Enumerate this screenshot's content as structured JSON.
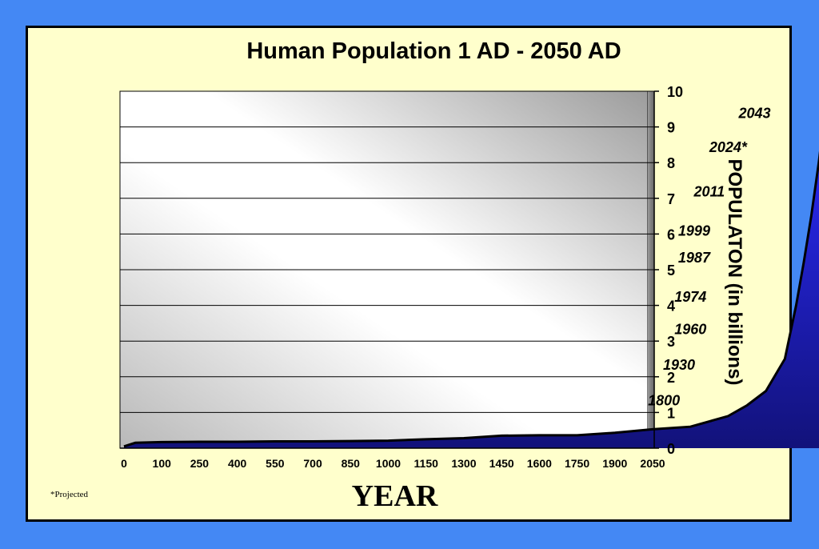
{
  "chart_data": {
    "type": "area",
    "title": "Human Population 1 AD - 2050 AD",
    "xlabel": "YEAR",
    "ylabel": "POPULATON (in billions)",
    "footnote": "*Projected",
    "x_tick_labels": [
      "0",
      "100",
      "250",
      "400",
      "550",
      "700",
      "850",
      "1000",
      "1150",
      "1300",
      "1450",
      "1600",
      "1750",
      "1900",
      "2050"
    ],
    "y_ticks": [
      0,
      1,
      2,
      3,
      4,
      5,
      6,
      7,
      8,
      9,
      10
    ],
    "ylim": [
      0,
      10
    ],
    "grid": true,
    "series": [
      {
        "points": [
          [
            0,
            0.05
          ],
          [
            0.3,
            0.15
          ],
          [
            1,
            0.17
          ],
          [
            2,
            0.18
          ],
          [
            3,
            0.18
          ],
          [
            4,
            0.19
          ],
          [
            5,
            0.19
          ],
          [
            6,
            0.2
          ],
          [
            7,
            0.21
          ],
          [
            8,
            0.25
          ],
          [
            9,
            0.28
          ],
          [
            10,
            0.35
          ],
          [
            11,
            0.36
          ],
          [
            12,
            0.36
          ],
          [
            13,
            0.43
          ],
          [
            14,
            0.53
          ],
          [
            15,
            0.6
          ],
          [
            16,
            0.9
          ],
          [
            16.5,
            1.2
          ],
          [
            17,
            1.6
          ],
          [
            17.5,
            2.5
          ],
          [
            17.8,
            4.0
          ],
          [
            18,
            5.2
          ],
          [
            18.2,
            6.5
          ],
          [
            18.4,
            8.0
          ],
          [
            18.55,
            9.3
          ]
        ]
      }
    ],
    "annotations": [
      {
        "text": "1800",
        "x": 14.3,
        "y": 1.2
      },
      {
        "text": "1930",
        "x": 14.7,
        "y": 2.2
      },
      {
        "text": "1960",
        "x": 15.0,
        "y": 3.2
      },
      {
        "text": "1974",
        "x": 15.0,
        "y": 4.1
      },
      {
        "text": "1987",
        "x": 15.1,
        "y": 5.2
      },
      {
        "text": "1999",
        "x": 15.1,
        "y": 5.95
      },
      {
        "text": "2011",
        "x": 15.5,
        "y": 7.05
      },
      {
        "text": "2024*",
        "x": 16.0,
        "y": 8.3
      },
      {
        "text": "2043",
        "x": 16.7,
        "y": 9.25
      }
    ]
  },
  "colors": {
    "background": "#4488f4",
    "card": "#ffffcc",
    "fill_top": "#2b2bff",
    "fill_bottom": "#12127a"
  }
}
